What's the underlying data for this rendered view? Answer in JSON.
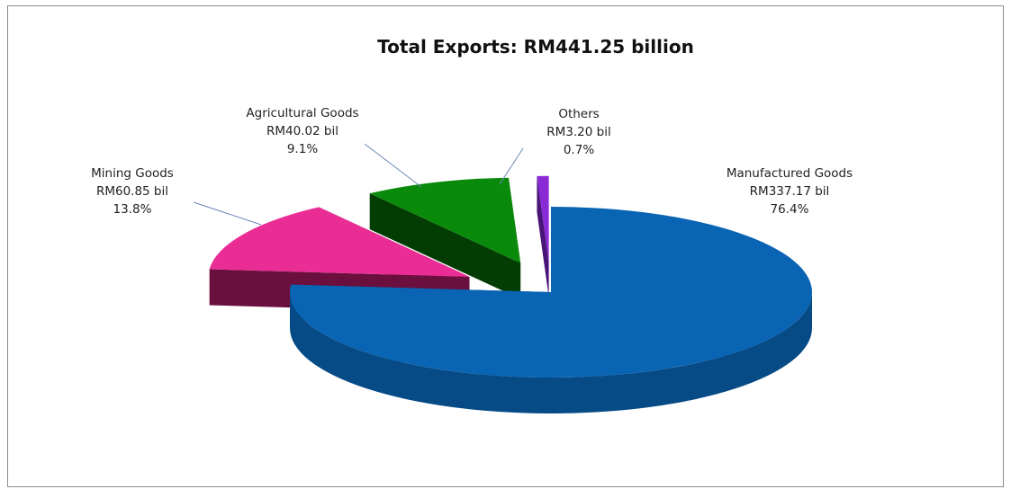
{
  "chart_data": {
    "type": "pie",
    "title": "Total Exports: RM441.25 billion",
    "slices": [
      {
        "name": "Manufactured Goods",
        "value_label": "RM337.17 bil",
        "value": 337.17,
        "percent": 76.4,
        "percent_label": "76.4%",
        "color": "#0a64b4",
        "side_color": "#064a86",
        "exploded": false
      },
      {
        "name": "Mining Goods",
        "value_label": "RM60.85 bil",
        "value": 60.85,
        "percent": 13.8,
        "percent_label": "13.8%",
        "color": "#ea2d95",
        "side_color": "#6b0f3e",
        "exploded": true
      },
      {
        "name": "Agricultural Goods",
        "value_label": "RM40.02 bil",
        "value": 40.02,
        "percent": 9.1,
        "percent_label": "9.1%",
        "color": "#0a8a0a",
        "side_color": "#043d04",
        "exploded": true
      },
      {
        "name": "Others",
        "value_label": "RM3.20 bil",
        "value": 3.2,
        "percent": 0.7,
        "percent_label": "0.7%",
        "color": "#8a2ad6",
        "side_color": "#4a1578",
        "exploded": true
      }
    ],
    "legend": "none"
  }
}
